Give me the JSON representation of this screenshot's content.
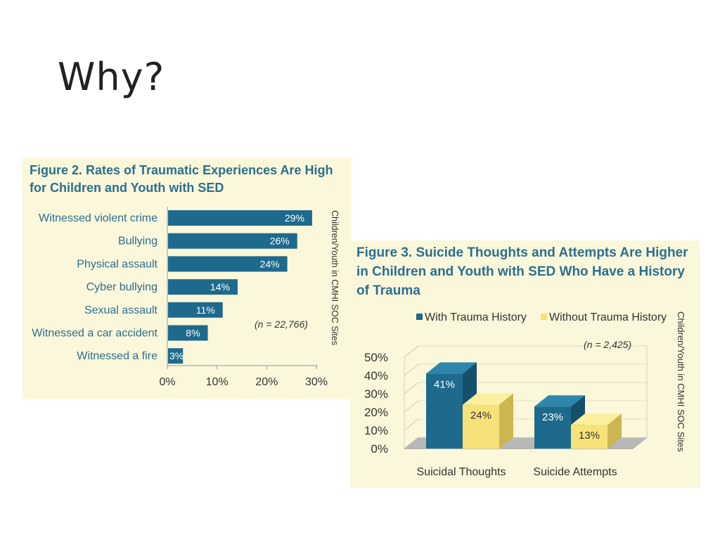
{
  "slide": {
    "title": "Why?"
  },
  "colors": {
    "title_blue": "#2b6f8f",
    "bar_blue": "#1e6a8c",
    "bar_yellow": "#f7e27a",
    "panel_bg": "#fbf7da"
  },
  "chart_data": [
    {
      "type": "bar",
      "orientation": "horizontal",
      "title": "Figure 2. Rates of Traumatic Experiences Are High for Children and Youth with SED",
      "categories": [
        "Witnessed violent crime",
        "Bullying",
        "Physical assault",
        "Cyber bullying",
        "Sexual assault",
        "Witnessed a car accident",
        "Witnessed a fire"
      ],
      "values": [
        29,
        26,
        24,
        14,
        11,
        8,
        3
      ],
      "value_labels": [
        "29%",
        "26%",
        "24%",
        "14%",
        "11%",
        "8%",
        "3%"
      ],
      "x_ticks": [
        "0%",
        "10%",
        "20%",
        "30%"
      ],
      "xlim": [
        0,
        30
      ],
      "annotation": "(n = 22,766)",
      "side_label": "Children/Youth in CMHI SOC Sites",
      "grid": false
    },
    {
      "type": "bar",
      "orientation": "vertical",
      "style": "3d",
      "title": "Figure 3. Suicide Thoughts and Attempts Are Higher in Children and Youth with SED Who Have a History of Trauma",
      "categories": [
        "Suicidal Thoughts",
        "Suicide Attempts"
      ],
      "series": [
        {
          "name": "With Trauma History",
          "values": [
            41,
            23
          ],
          "value_labels": [
            "41%",
            "23%"
          ],
          "color": "#1e6a8c"
        },
        {
          "name": "Without Trauma History",
          "values": [
            24,
            13
          ],
          "value_labels": [
            "24%",
            "13%"
          ],
          "color": "#f7e27a"
        }
      ],
      "y_ticks": [
        "0%",
        "10%",
        "20%",
        "30%",
        "40%",
        "50%"
      ],
      "ylim": [
        0,
        50
      ],
      "annotation": "(n = 2,425)",
      "side_label": "Children/Youth in CMHI SOC Sites",
      "legend_position": "top"
    }
  ]
}
